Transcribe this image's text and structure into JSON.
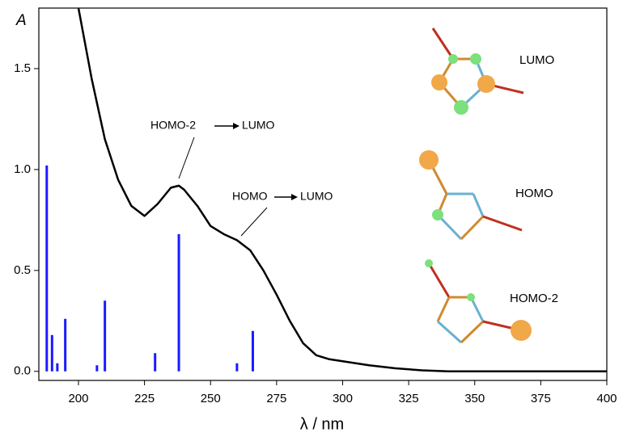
{
  "chart_data": {
    "type": "line",
    "xlabel": "λ / nm",
    "ylabel": "A",
    "x": [
      200,
      205,
      210,
      215,
      220,
      225,
      230,
      235,
      238,
      240,
      245,
      250,
      255,
      260,
      265,
      270,
      275,
      280,
      285,
      290,
      295,
      300,
      310,
      320,
      330,
      340,
      350,
      375,
      400
    ],
    "values": [
      1.8,
      1.45,
      1.15,
      0.95,
      0.82,
      0.77,
      0.83,
      0.91,
      0.92,
      0.9,
      0.82,
      0.72,
      0.68,
      0.65,
      0.6,
      0.5,
      0.38,
      0.25,
      0.14,
      0.08,
      0.06,
      0.05,
      0.03,
      0.015,
      0.005,
      0,
      0,
      0,
      0
    ],
    "color": "#000000",
    "transitions": {
      "type": "stick",
      "x": [
        188,
        190,
        192,
        195,
        207,
        210,
        229,
        238,
        260,
        266
      ],
      "values": [
        1.02,
        0.18,
        0.04,
        0.26,
        0.03,
        0.35,
        0.09,
        0.68,
        0.04,
        0.2
      ],
      "color": "#1a1aff"
    },
    "xlim": [
      185,
      400
    ],
    "ylim": [
      -0.045,
      1.8
    ],
    "xticks": [
      200,
      225,
      250,
      275,
      300,
      325,
      350,
      375,
      400
    ],
    "yticks": [
      {
        "value": 0,
        "label": "0.0"
      },
      0.5,
      {
        "value": 1,
        "label": "1.0"
      },
      1.5
    ],
    "annotations": [
      {
        "from": "HOMO-2",
        "to": "LUMO"
      },
      {
        "from": "HOMO",
        "to": "LUMO"
      }
    ],
    "orbital_labels": [
      "LUMO",
      "HOMO",
      "HOMO-2"
    ]
  }
}
